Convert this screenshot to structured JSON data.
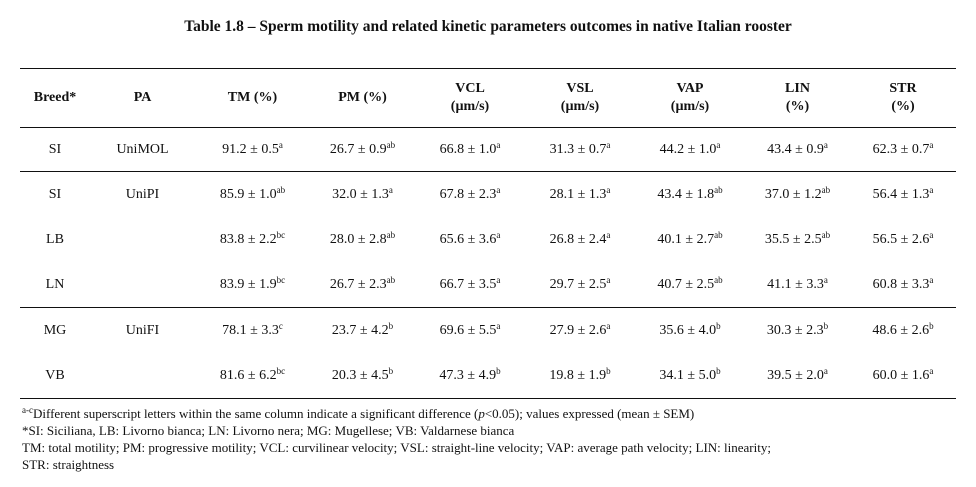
{
  "caption": "Table 1.8 – Sperm motility and related kinetic parameters outcomes in native Italian rooster",
  "columns": [
    {
      "line1": "Breed*",
      "line2": ""
    },
    {
      "line1": "PA",
      "line2": ""
    },
    {
      "line1": "TM (%)",
      "line2": ""
    },
    {
      "line1": "PM (%)",
      "line2": ""
    },
    {
      "line1": "VCL",
      "line2": "(µm/s)"
    },
    {
      "line1": "VSL",
      "line2": "(µm/s)"
    },
    {
      "line1": "VAP",
      "line2": "(µm/s)"
    },
    {
      "line1": "LIN",
      "line2": "(%)"
    },
    {
      "line1": "STR",
      "line2": "(%)"
    }
  ],
  "rows": [
    {
      "breed": "SI",
      "pa": "UniMOL",
      "cells": [
        {
          "v": "91.2 ± 0.5",
          "s": "a"
        },
        {
          "v": "26.7 ± 0.9",
          "s": "ab"
        },
        {
          "v": "66.8 ± 1.0",
          "s": "a"
        },
        {
          "v": "31.3 ± 0.7",
          "s": "a"
        },
        {
          "v": "44.2 ± 1.0",
          "s": "a"
        },
        {
          "v": "43.4 ± 0.9",
          "s": "a"
        },
        {
          "v": "62.3 ± 0.7",
          "s": "a"
        }
      ]
    },
    {
      "breed": "SI",
      "pa": "UniPI",
      "cells": [
        {
          "v": "85.9 ± 1.0",
          "s": "ab"
        },
        {
          "v": "32.0 ± 1.3",
          "s": "a"
        },
        {
          "v": "67.8 ± 2.3",
          "s": "a"
        },
        {
          "v": "28.1 ± 1.3",
          "s": "a"
        },
        {
          "v": "43.4 ± 1.8",
          "s": "ab"
        },
        {
          "v": "37.0 ± 1.2",
          "s": "ab"
        },
        {
          "v": "56.4 ± 1.3",
          "s": "a"
        }
      ]
    },
    {
      "breed": "LB",
      "pa": "",
      "cells": [
        {
          "v": "83.8 ± 2.2",
          "s": "bc"
        },
        {
          "v": "28.0 ± 2.8",
          "s": "ab"
        },
        {
          "v": "65.6 ± 3.6",
          "s": "a"
        },
        {
          "v": "26.8 ± 2.4",
          "s": "a"
        },
        {
          "v": "40.1 ± 2.7",
          "s": "ab"
        },
        {
          "v": "35.5 ± 2.5",
          "s": "ab"
        },
        {
          "v": "56.5 ± 2.6",
          "s": "a"
        }
      ]
    },
    {
      "breed": "LN",
      "pa": "",
      "cells": [
        {
          "v": "83.9 ± 1.9",
          "s": "bc"
        },
        {
          "v": "26.7 ± 2.3",
          "s": "ab"
        },
        {
          "v": "66.7 ± 3.5",
          "s": "a"
        },
        {
          "v": "29.7 ± 2.5",
          "s": "a"
        },
        {
          "v": "40.7 ± 2.5",
          "s": "ab"
        },
        {
          "v": "41.1 ± 3.3",
          "s": "a"
        },
        {
          "v": "60.8 ± 3.3",
          "s": "a"
        }
      ]
    },
    {
      "breed": "MG",
      "pa": "UniFI",
      "cells": [
        {
          "v": "78.1 ± 3.3",
          "s": "c"
        },
        {
          "v": "23.7 ± 4.2",
          "s": "b"
        },
        {
          "v": "69.6 ± 5.5",
          "s": "a"
        },
        {
          "v": "27.9 ± 2.6",
          "s": "a"
        },
        {
          "v": "35.6 ± 4.0",
          "s": "b"
        },
        {
          "v": "30.3 ± 2.3",
          "s": "b"
        },
        {
          "v": "48.6 ± 2.6",
          "s": "b"
        }
      ]
    },
    {
      "breed": "VB",
      "pa": "",
      "cells": [
        {
          "v": "81.6 ± 6.2",
          "s": "bc"
        },
        {
          "v": "20.3 ± 4.5",
          "s": "b"
        },
        {
          "v": "47.3 ± 4.9",
          "s": "b"
        },
        {
          "v": "19.8 ± 1.9",
          "s": "b"
        },
        {
          "v": "34.1 ± 5.0",
          "s": "b"
        },
        {
          "v": "39.5 ± 2.0",
          "s": "a"
        },
        {
          "v": "60.0 ± 1.6",
          "s": "a"
        }
      ]
    }
  ],
  "notes": {
    "line1_sup": "a-c",
    "line1_a": "Different superscript letters within the same column indicate a significant difference (",
    "line1_p": "p",
    "line1_b": "<0.05); values expressed (mean ± SEM)",
    "line2": "*SI: Siciliana, LB: Livorno bianca; LN: Livorno nera; MG: Mugellese; VB: Valdarnese bianca",
    "line3": "TM: total motility; PM: progressive motility; VCL: curvilinear velocity; VSL: straight-line velocity; VAP: average path velocity; LIN: linearity;",
    "line4": "STR: straightness"
  }
}
